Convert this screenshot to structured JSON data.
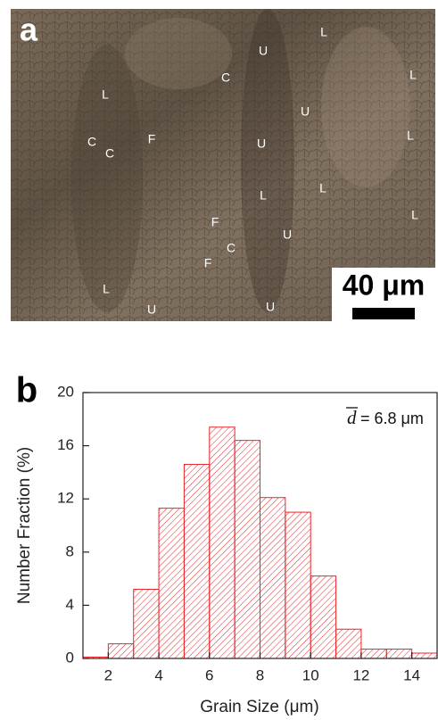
{
  "panel_a": {
    "label": "a",
    "markers": [
      "U",
      "L",
      "C",
      "L",
      "L",
      "U",
      "C",
      "C",
      "F",
      "U",
      "L",
      "L",
      "L",
      "L",
      "F",
      "U",
      "C",
      "F",
      "L",
      "U",
      "U"
    ],
    "scale_bar": "40 μm"
  },
  "chart_data": {
    "type": "histogram",
    "panel_label": "b",
    "x_label": "Grain Size (μm)",
    "y_label": "Number Fraction (%)",
    "annotation": {
      "symbol": "d",
      "text": "= 6.8 μm"
    },
    "bins": [
      1,
      2,
      3,
      4,
      5,
      6,
      7,
      8,
      9,
      10,
      11,
      12,
      13,
      14,
      15
    ],
    "values": [
      0.1,
      1.1,
      5.2,
      11.3,
      14.6,
      17.4,
      16.4,
      12.1,
      11.0,
      6.2,
      2.2,
      0.7,
      0.7,
      0.4
    ],
    "color": "#e8262b",
    "xlim": [
      1,
      15
    ],
    "xticks": [
      2,
      4,
      6,
      8,
      10,
      12,
      14
    ],
    "ylim": [
      0,
      20
    ],
    "yticks": [
      0,
      4,
      8,
      12,
      16,
      20
    ]
  }
}
